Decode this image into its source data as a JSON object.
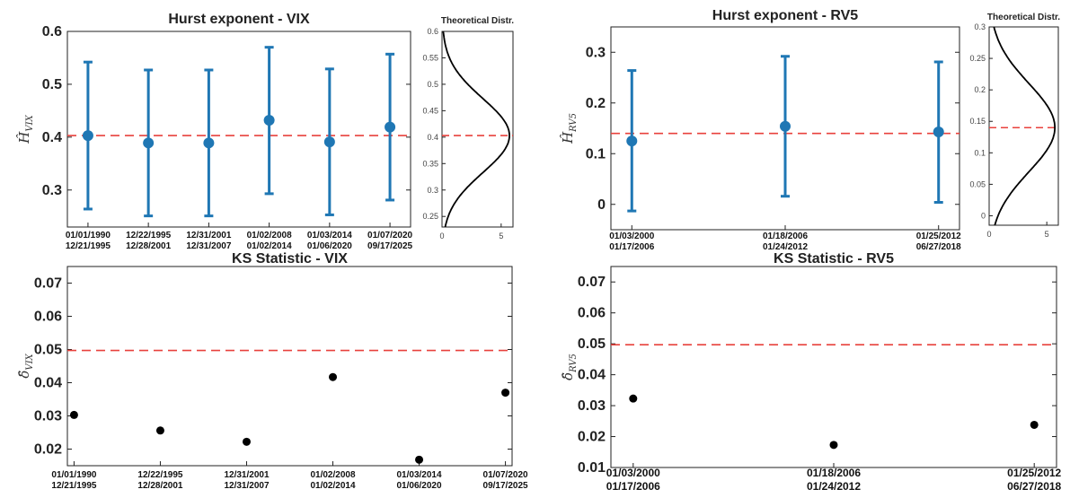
{
  "colors": {
    "point": "#1f77b4",
    "ks_point": "#000000",
    "ref_line": "#e8413c",
    "density": "#000000"
  },
  "chart_data": [
    {
      "type": "scatter",
      "title": "Hurst exponent - VIX",
      "ylabel": "Ĥ",
      "ylabel_sub": "VIX",
      "ylim": [
        0.23,
        0.6
      ],
      "yticks": [
        "0.6",
        "0.5",
        "0.4",
        "0.3"
      ],
      "ytick_values": [
        0.6,
        0.5,
        0.4,
        0.3
      ],
      "categories": [
        {
          "start": "01/01/1990",
          "end": "12/21/1995"
        },
        {
          "start": "12/22/1995",
          "end": "12/28/2001"
        },
        {
          "start": "12/31/2001",
          "end": "12/31/2007"
        },
        {
          "start": "01/02/2008",
          "end": "01/02/2014"
        },
        {
          "start": "01/03/2014",
          "end": "01/06/2020"
        },
        {
          "start": "01/07/2020",
          "end": "09/17/2025"
        }
      ],
      "values": [
        0.403,
        0.389,
        0.389,
        0.432,
        0.391,
        0.419
      ],
      "lower": [
        0.264,
        0.251,
        0.251,
        0.293,
        0.253,
        0.281
      ],
      "upper": [
        0.542,
        0.527,
        0.527,
        0.57,
        0.529,
        0.557
      ],
      "reference_line": 0.403,
      "error_bars": true
    },
    {
      "type": "line",
      "title": "Theoretical Distr.",
      "xlim": [
        0,
        6
      ],
      "xticks": [
        "0",
        "5"
      ],
      "xtick_values": [
        0,
        5
      ],
      "ylim": [
        0.23,
        0.6
      ],
      "yticks": [
        "0.6",
        "0.55",
        "0.5",
        "0.45",
        "0.4",
        "0.35",
        "0.3",
        "0.25"
      ],
      "ytick_values": [
        0.6,
        0.55,
        0.5,
        0.45,
        0.4,
        0.35,
        0.3,
        0.25
      ],
      "mean": 0.403,
      "sd": 0.07,
      "reference_line": 0.403
    },
    {
      "type": "scatter",
      "title": "Hurst exponent - RV5",
      "ylabel": "Ĥ",
      "ylabel_sub": "RV5",
      "ylim": [
        -0.05,
        0.35
      ],
      "yticks": [
        "0.3",
        "0.2",
        "0.1",
        "0"
      ],
      "ytick_values": [
        0.3,
        0.2,
        0.1,
        0
      ],
      "categories": [
        {
          "start": "01/03/2000",
          "end": "01/17/2006"
        },
        {
          "start": "01/18/2006",
          "end": "01/24/2012"
        },
        {
          "start": "01/25/2012",
          "end": "06/27/2018"
        }
      ],
      "values": [
        0.125,
        0.154,
        0.143
      ],
      "lower": [
        -0.013,
        0.016,
        0.004
      ],
      "upper": [
        0.264,
        0.292,
        0.281
      ],
      "reference_line": 0.14,
      "error_bars": true
    },
    {
      "type": "line",
      "title": "Theoretical Distr.",
      "xlim": [
        0,
        6
      ],
      "xticks": [
        "0",
        "5"
      ],
      "xtick_values": [
        0,
        5
      ],
      "ylim": [
        -0.015,
        0.3
      ],
      "yticks": [
        "0.3",
        "0.25",
        "0.2",
        "0.15",
        "0.1",
        "0.05",
        "0"
      ],
      "ytick_values": [
        0.3,
        0.25,
        0.2,
        0.15,
        0.1,
        0.05,
        0
      ],
      "mean": 0.14,
      "sd": 0.07,
      "reference_line": 0.14
    },
    {
      "type": "scatter",
      "title": "KS Statistic - VIX",
      "ylabel": "δ̂",
      "ylabel_sub": "VIX",
      "ylim": [
        0.015,
        0.075
      ],
      "yticks": [
        "0.07",
        "0.06",
        "0.05",
        "0.04",
        "0.03",
        "0.02"
      ],
      "ytick_values": [
        0.07,
        0.06,
        0.05,
        0.04,
        0.03,
        0.02
      ],
      "categories": [
        {
          "start": "01/01/1990",
          "end": "12/21/1995"
        },
        {
          "start": "12/22/1995",
          "end": "12/28/2001"
        },
        {
          "start": "12/31/2001",
          "end": "12/31/2007"
        },
        {
          "start": "01/02/2008",
          "end": "01/02/2014"
        },
        {
          "start": "01/03/2014",
          "end": "01/06/2020"
        },
        {
          "start": "01/07/2020",
          "end": "09/17/2025"
        }
      ],
      "values": [
        0.0303,
        0.0256,
        0.0222,
        0.0417,
        0.0168,
        0.037
      ],
      "reference_line": 0.0497
    },
    {
      "type": "scatter",
      "title": "KS Statistic - RV5",
      "ylabel": "δ̂",
      "ylabel_sub": "RV5",
      "ylim": [
        0.01,
        0.075
      ],
      "yticks": [
        "0.07",
        "0.06",
        "0.05",
        "0.04",
        "0.03",
        "0.02",
        "0.01"
      ],
      "ytick_values": [
        0.07,
        0.06,
        0.05,
        0.04,
        0.03,
        0.02,
        0.01
      ],
      "categories": [
        {
          "start": "01/03/2000",
          "end": "01/17/2006"
        },
        {
          "start": "01/18/2006",
          "end": "01/24/2012"
        },
        {
          "start": "01/25/2012",
          "end": "06/27/2018"
        }
      ],
      "values": [
        0.0323,
        0.0173,
        0.0238
      ],
      "reference_line": 0.0497
    }
  ]
}
